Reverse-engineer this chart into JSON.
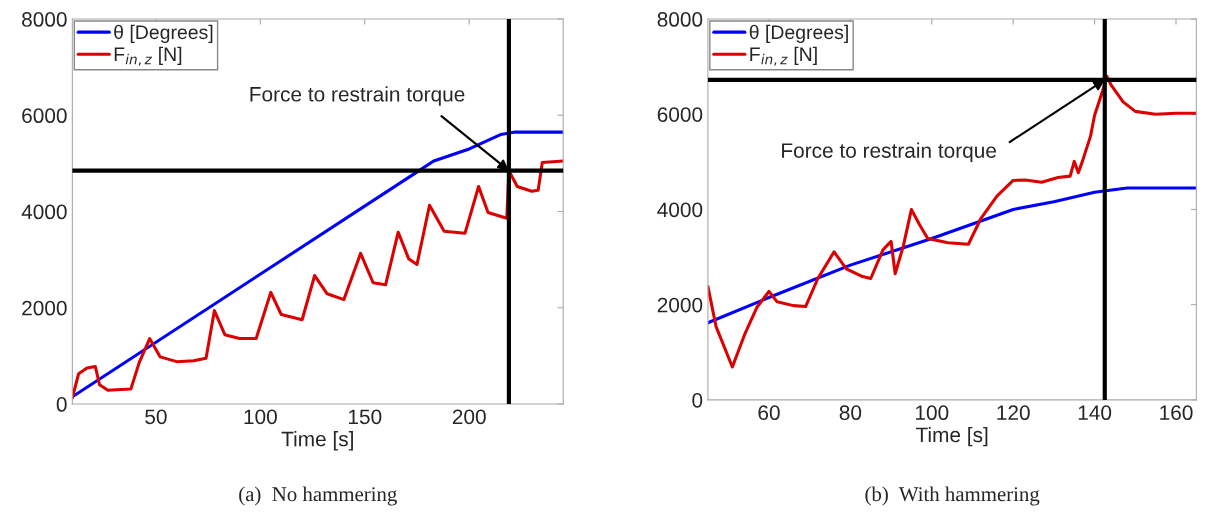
{
  "chart_data": [
    {
      "type": "line",
      "xlabel": "Time [s]",
      "xlim": [
        10,
        245
      ],
      "xticks": [
        50,
        100,
        150,
        200
      ],
      "ylim": [
        0,
        8000
      ],
      "yticks": [
        0,
        2000,
        4000,
        6000,
        8000
      ],
      "legend": "top left",
      "grid": false,
      "series": [
        {
          "name": "θ [Degrees]",
          "color": "#0000ff",
          "x": [
            10,
            176,
            183,
            200,
            215,
            222,
            245
          ],
          "values": [
            150,
            4850,
            5050,
            5300,
            5600,
            5650,
            5650
          ]
        },
        {
          "name": "F$_{in,z}$ [N]",
          "color": "#dd0000",
          "x": [
            10,
            13,
            17,
            21,
            23,
            27,
            38,
            42,
            47,
            52,
            60,
            68,
            74,
            78,
            83,
            90,
            98,
            105,
            110,
            120,
            126,
            132,
            140,
            148,
            154,
            160,
            166,
            171,
            175,
            181,
            188,
            198,
            204.5,
            209,
            218,
            219,
            223,
            230,
            233,
            235,
            245
          ],
          "values": [
            130,
            630,
            750,
            780,
            400,
            285,
            310,
            860,
            1360,
            980,
            880,
            900,
            950,
            1940,
            1440,
            1360,
            1360,
            2320,
            1860,
            1750,
            2670,
            2290,
            2170,
            3130,
            2520,
            2480,
            3570,
            3020,
            2900,
            4130,
            3590,
            3550,
            4520,
            3980,
            3860,
            4850,
            4520,
            4420,
            4440,
            5020,
            5050
          ]
        }
      ],
      "ref_lines": [
        {
          "axis": "x",
          "value": 219,
          "color": "#000000"
        },
        {
          "axis": "y",
          "value": 4850,
          "color": "#000000"
        }
      ],
      "annotations": [
        {
          "text": "Force to restrain torque",
          "x": 219,
          "y": 4850
        },
        "(a)  No hammering"
      ]
    },
    {
      "type": "line",
      "xlabel": "Time [s]",
      "xlim": [
        45,
        165
      ],
      "xticks": [
        60,
        80,
        100,
        120,
        140,
        160
      ],
      "ylim": [
        0,
        8000
      ],
      "yticks": [
        0,
        2000,
        4000,
        6000,
        8000
      ],
      "legend": "top left",
      "grid": false,
      "series": [
        {
          "name": "θ [Degrees]",
          "color": "#0000ff",
          "x": [
            45,
            60,
            80,
            100,
            120,
            130,
            140,
            148,
            165
          ],
          "values": [
            1620,
            2150,
            2830,
            3390,
            4000,
            4160,
            4360,
            4450,
            4450
          ]
        },
        {
          "name": "F$_{in,z}$ [N]",
          "color": "#dd0000",
          "x": [
            45,
            47,
            51,
            54,
            57,
            60,
            62,
            66,
            69,
            72,
            76,
            79,
            83,
            85,
            88,
            90,
            91,
            93,
            95,
            97,
            99,
            104,
            109,
            112,
            116,
            120,
            123,
            127,
            131,
            134,
            135,
            136,
            137,
            139,
            140,
            142,
            143,
            144,
            147,
            150,
            155,
            160,
            165
          ],
          "values": [
            2380,
            1540,
            690,
            1370,
            1940,
            2280,
            2060,
            1980,
            1960,
            2550,
            3110,
            2750,
            2590,
            2550,
            3150,
            3330,
            2650,
            3230,
            4000,
            3680,
            3390,
            3300,
            3270,
            3800,
            4280,
            4610,
            4620,
            4570,
            4670,
            4700,
            5010,
            4770,
            5010,
            5540,
            5980,
            6500,
            6800,
            6620,
            6260,
            6060,
            6000,
            6020,
            6020
          ]
        }
      ],
      "ref_lines": [
        {
          "axis": "x",
          "value": 142.5,
          "color": "#000000"
        },
        {
          "axis": "y",
          "value": 6720,
          "color": "#000000"
        }
      ],
      "annotations": [
        {
          "text": "Force to restrain torque",
          "x": 142.5,
          "y": 6720
        },
        "(b)  With hammering"
      ]
    }
  ]
}
